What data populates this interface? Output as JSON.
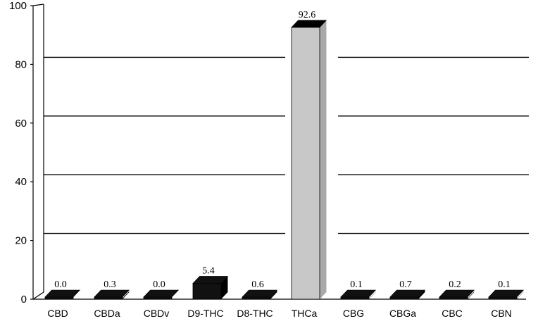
{
  "chart_data": {
    "type": "bar",
    "categories": [
      "CBD",
      "CBDa",
      "CBDv",
      "D9-THC",
      "D8-THC",
      "THCa",
      "CBG",
      "CBGa",
      "CBC",
      "CBN"
    ],
    "values": [
      0.0,
      0.3,
      0.0,
      5.4,
      0.6,
      92.6,
      0.1,
      0.7,
      0.2,
      0.1
    ],
    "data_labels": [
      "0.0",
      "0.3",
      "0.0",
      "5.4",
      "0.6",
      "92.6",
      "0.1",
      "0.7",
      "0.2",
      "0.1"
    ],
    "y_ticks": [
      "0",
      "20",
      "40",
      "60",
      "80",
      "100"
    ],
    "ylim": [
      0,
      100
    ],
    "grid": true,
    "style": "3d-bar",
    "colors": {
      "bar_front": "#111111",
      "bar_top": "#000000",
      "highlight_bar": "#c8c8c8",
      "grid": "#000000"
    }
  }
}
